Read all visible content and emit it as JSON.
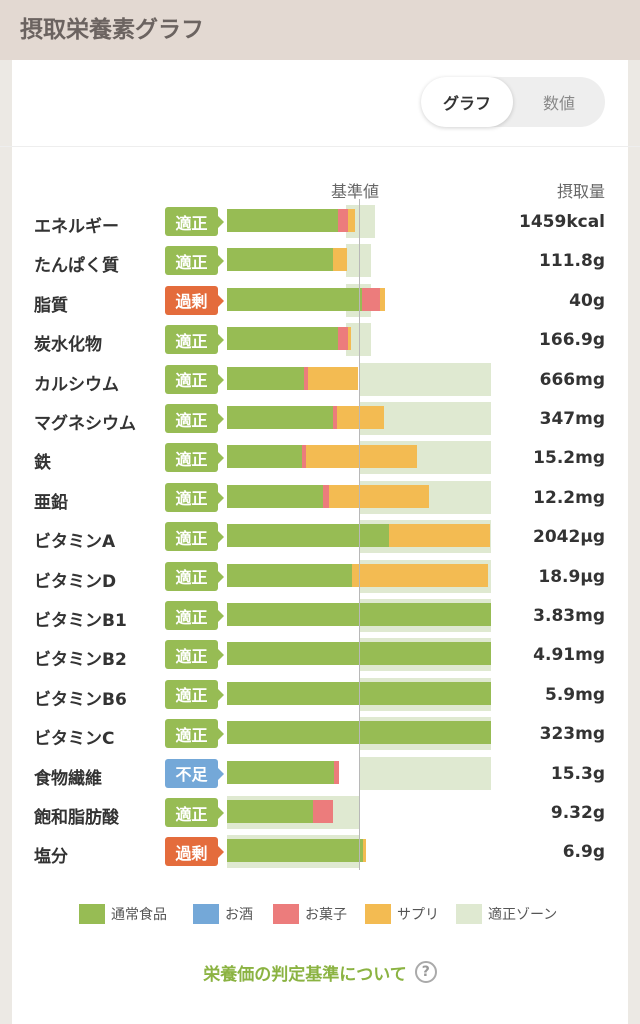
{
  "header": {
    "title": "摂取栄養素グラフ"
  },
  "toggle": {
    "graph_label": "グラフ",
    "value_label": "数値"
  },
  "columns": {
    "baseline_label": "基準値",
    "intake_label": "摂取量"
  },
  "colors": {
    "food": "#97bc54",
    "alcohol": "#74a8d8",
    "snack": "#ec7c7c",
    "supp": "#f3bb52",
    "zone": "#dfe9d1",
    "status_ok": "#97bc54",
    "status_over": "#e46c3c",
    "status_under": "#74a8d8"
  },
  "nutrients": [
    {
      "name": "エネルギー",
      "status": "適正",
      "status_type": "ok",
      "value": "1459kcal",
      "zone": [
        0.9,
        1.12
      ],
      "intake": {
        "food": 0.84,
        "alcohol": 0,
        "snack": 0.08,
        "supp": 0.05
      }
    },
    {
      "name": "たんぱく質",
      "status": "適正",
      "status_type": "ok",
      "value": "111.8g",
      "zone": [
        0.9,
        1.09
      ],
      "intake": {
        "food": 0.8,
        "alcohol": 0,
        "snack": 0,
        "supp": 0.11
      }
    },
    {
      "name": "脂質",
      "status": "過剰",
      "status_type": "over",
      "value": "40g",
      "zone": [
        0.9,
        1.09
      ],
      "intake": {
        "food": 1.02,
        "alcohol": 0,
        "snack": 0.14,
        "supp": 0.04
      }
    },
    {
      "name": "炭水化物",
      "status": "適正",
      "status_type": "ok",
      "value": "166.9g",
      "zone": [
        0.9,
        1.09
      ],
      "intake": {
        "food": 0.84,
        "alcohol": 0,
        "snack": 0.08,
        "supp": 0.02
      }
    },
    {
      "name": "カルシウム",
      "status": "適正",
      "status_type": "ok",
      "value": "666mg",
      "zone": [
        1.0,
        2.0
      ],
      "intake": {
        "food": 0.58,
        "alcohol": 0,
        "snack": 0.03,
        "supp": 0.38
      }
    },
    {
      "name": "マグネシウム",
      "status": "適正",
      "status_type": "ok",
      "value": "347mg",
      "zone": [
        1.0,
        2.0
      ],
      "intake": {
        "food": 0.8,
        "alcohol": 0,
        "snack": 0.03,
        "supp": 0.36
      }
    },
    {
      "name": "鉄",
      "status": "適正",
      "status_type": "ok",
      "value": "15.2mg",
      "zone": [
        1.0,
        2.0
      ],
      "intake": {
        "food": 0.57,
        "alcohol": 0,
        "snack": 0.03,
        "supp": 0.84
      }
    },
    {
      "name": "亜鉛",
      "status": "適正",
      "status_type": "ok",
      "value": "12.2mg",
      "zone": [
        1.0,
        2.0
      ],
      "intake": {
        "food": 0.73,
        "alcohol": 0,
        "snack": 0.04,
        "supp": 0.76
      }
    },
    {
      "name": "ビタミンA",
      "status": "適正",
      "status_type": "ok",
      "value": "2042μg",
      "zone": [
        1.0,
        2.0
      ],
      "intake": {
        "food": 1.23,
        "alcohol": 0,
        "snack": 0,
        "supp": 0.76
      }
    },
    {
      "name": "ビタミンD",
      "status": "適正",
      "status_type": "ok",
      "value": "18.9μg",
      "zone": [
        1.0,
        2.0
      ],
      "intake": {
        "food": 0.95,
        "alcohol": 0,
        "snack": 0,
        "supp": 1.03
      }
    },
    {
      "name": "ビタミンB1",
      "status": "適正",
      "status_type": "ok",
      "value": "3.83mg",
      "zone": [
        1.0,
        2.0
      ],
      "intake": {
        "food": 2.0,
        "alcohol": 0,
        "snack": 0,
        "supp": 0
      }
    },
    {
      "name": "ビタミンB2",
      "status": "適正",
      "status_type": "ok",
      "value": "4.91mg",
      "zone": [
        1.0,
        2.0
      ],
      "intake": {
        "food": 2.0,
        "alcohol": 0,
        "snack": 0,
        "supp": 0
      }
    },
    {
      "name": "ビタミンB6",
      "status": "適正",
      "status_type": "ok",
      "value": "5.9mg",
      "zone": [
        1.0,
        2.0
      ],
      "intake": {
        "food": 2.0,
        "alcohol": 0,
        "snack": 0,
        "supp": 0
      }
    },
    {
      "name": "ビタミンC",
      "status": "適正",
      "status_type": "ok",
      "value": "323mg",
      "zone": [
        1.0,
        2.0
      ],
      "intake": {
        "food": 2.0,
        "alcohol": 0,
        "snack": 0,
        "supp": 0
      }
    },
    {
      "name": "食物繊維",
      "status": "不足",
      "status_type": "under",
      "value": "15.3g",
      "zone": [
        1.0,
        2.0
      ],
      "intake": {
        "food": 0.81,
        "alcohol": 0,
        "snack": 0.04,
        "supp": 0
      }
    },
    {
      "name": "飽和脂肪酸",
      "status": "適正",
      "status_type": "ok",
      "value": "9.32g",
      "zone": [
        0.0,
        1.0
      ],
      "intake": {
        "food": 0.65,
        "alcohol": 0,
        "snack": 0.15,
        "supp": 0
      }
    },
    {
      "name": "塩分",
      "status": "過剰",
      "status_type": "over",
      "value": "6.9g",
      "zone": [
        0.0,
        1.0
      ],
      "intake": {
        "food": 1.03,
        "alcohol": 0,
        "snack": 0,
        "supp": 0.02
      }
    }
  ],
  "legend": [
    {
      "key": "food",
      "label": "通常食品"
    },
    {
      "key": "alcohol",
      "label": "お酒"
    },
    {
      "key": "snack",
      "label": "お菓子"
    },
    {
      "key": "supp",
      "label": "サプリ"
    },
    {
      "key": "zone",
      "label": "適正ゾーン"
    }
  ],
  "footer": {
    "link_label": "栄養価の判定基準について",
    "help_icon": "help-icon",
    "help_glyph": "?"
  }
}
